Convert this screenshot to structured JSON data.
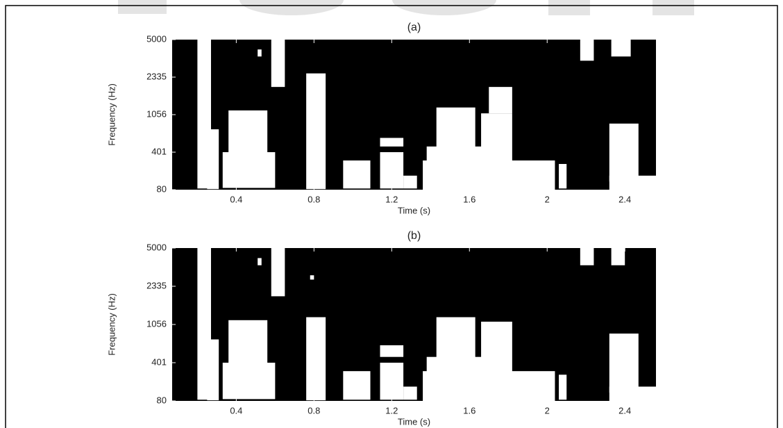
{
  "chart_data": [
    {
      "type": "mask",
      "title": "(a)",
      "x_label": "Time (s)",
      "y_label": "Frequency (Hz)",
      "xlim": [
        0.07,
        2.56
      ],
      "xticks": [
        0.4,
        0.8,
        1.2,
        1.6,
        2,
        2.4
      ],
      "ylim": [
        80,
        5000
      ],
      "yticks": [
        80,
        401,
        1056,
        2335,
        5000
      ],
      "background": "#000000",
      "color": "#ffffff",
      "regions": [
        [
          0.2,
          0.27,
          90,
          5000
        ],
        [
          0.25,
          0.31,
          85,
          800
        ],
        [
          0.36,
          0.56,
          110,
          1200
        ],
        [
          0.33,
          0.6,
          95,
          401
        ],
        [
          0.51,
          0.53,
          3800,
          4300
        ],
        [
          0.58,
          0.65,
          2000,
          5000
        ],
        [
          0.76,
          0.86,
          85,
          2600
        ],
        [
          0.95,
          1.09,
          90,
          330
        ],
        [
          1.14,
          1.26,
          90,
          401
        ],
        [
          1.14,
          1.26,
          500,
          650
        ],
        [
          1.26,
          1.33,
          90,
          200
        ],
        [
          1.43,
          1.63,
          300,
          1300
        ],
        [
          1.38,
          1.68,
          80,
          500
        ],
        [
          1.66,
          1.82,
          150,
          1100
        ],
        [
          1.7,
          1.82,
          1100,
          2000
        ],
        [
          1.36,
          2.04,
          80,
          330
        ],
        [
          2.06,
          2.1,
          90,
          300
        ],
        [
          2.17,
          2.24,
          3500,
          5000
        ],
        [
          2.33,
          2.43,
          3800,
          5000
        ],
        [
          2.32,
          2.47,
          150,
          900
        ],
        [
          2.32,
          2.56,
          80,
          200
        ]
      ]
    },
    {
      "type": "mask",
      "title": "(b)",
      "x_label": "Time (s)",
      "y_label": "Frequency (Hz)",
      "xlim": [
        0.07,
        2.56
      ],
      "xticks": [
        0.4,
        0.8,
        1.2,
        1.6,
        2,
        2.4
      ],
      "ylim": [
        80,
        5000
      ],
      "yticks": [
        80,
        401,
        1056,
        2335,
        5000
      ],
      "background": "#000000",
      "color": "#ffffff",
      "regions": [
        [
          0.2,
          0.27,
          90,
          5000
        ],
        [
          0.25,
          0.31,
          85,
          800
        ],
        [
          0.36,
          0.56,
          110,
          1200
        ],
        [
          0.33,
          0.6,
          95,
          401
        ],
        [
          0.51,
          0.53,
          3800,
          4300
        ],
        [
          0.58,
          0.65,
          2000,
          5000
        ],
        [
          0.76,
          0.86,
          85,
          1300
        ],
        [
          0.78,
          0.8,
          2800,
          3100
        ],
        [
          0.95,
          1.09,
          90,
          330
        ],
        [
          1.14,
          1.26,
          90,
          401
        ],
        [
          1.14,
          1.26,
          500,
          700
        ],
        [
          1.26,
          1.33,
          90,
          200
        ],
        [
          1.43,
          1.63,
          300,
          1300
        ],
        [
          1.38,
          1.68,
          80,
          500
        ],
        [
          1.66,
          1.82,
          150,
          1150
        ],
        [
          1.36,
          2.04,
          80,
          330
        ],
        [
          2.06,
          2.1,
          90,
          300
        ],
        [
          2.17,
          2.24,
          3800,
          5000
        ],
        [
          2.33,
          2.4,
          3800,
          5000
        ],
        [
          2.32,
          2.47,
          150,
          900
        ],
        [
          2.32,
          2.56,
          80,
          200
        ]
      ]
    }
  ]
}
